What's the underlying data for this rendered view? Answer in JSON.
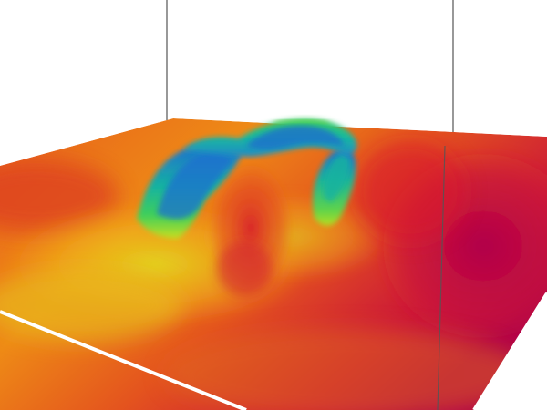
{
  "scene": {
    "kind": "3d-terrain-surface",
    "background": "#ffffff",
    "frame_line_color": "#555555",
    "edge_color": "#ffffff",
    "colormap": [
      "#b0004a",
      "#d8102e",
      "#e6401e",
      "#ec7a14",
      "#f1a41a",
      "#e9d21c",
      "#b8de1e",
      "#3fcf5a",
      "#17b3a0",
      "#1f6fd0"
    ],
    "features": [
      "ridge-left",
      "ridge-right",
      "crest-top",
      "red-basin-center",
      "magenta-basin-right"
    ]
  }
}
